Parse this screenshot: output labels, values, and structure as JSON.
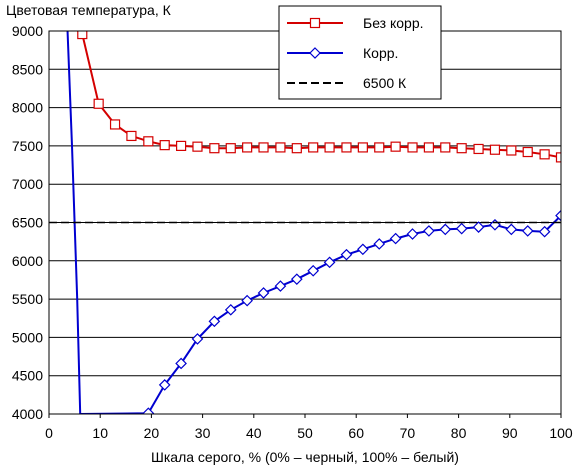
{
  "chart_data": {
    "type": "line",
    "title": "",
    "ylabel": "Цветовая температура, К",
    "xlabel": "Шкала серого, % (0% – черный, 100% – белый)",
    "xlim": [
      0,
      100
    ],
    "ylim": [
      4000,
      9000
    ],
    "xticks": [
      "0",
      "10",
      "20",
      "30",
      "40",
      "50",
      "60",
      "70",
      "80",
      "90",
      "100"
    ],
    "yticks": [
      "4000",
      "4500",
      "5000",
      "5500",
      "6000",
      "6500",
      "7000",
      "7500",
      "8000",
      "8500",
      "9000"
    ],
    "grid": true,
    "legend_position": "top-right",
    "series": [
      {
        "name": "Без корр.",
        "color": "#d40000",
        "marker": "square",
        "line": "solid",
        "x": [
          6.5,
          9.7,
          12.9,
          16.1,
          19.4,
          22.6,
          25.8,
          29.0,
          32.3,
          35.5,
          38.7,
          41.9,
          45.2,
          48.4,
          51.6,
          54.8,
          58.1,
          61.3,
          64.5,
          67.7,
          71.0,
          74.2,
          77.4,
          80.6,
          83.9,
          87.1,
          90.3,
          93.5,
          96.8,
          100.0
        ],
        "y": [
          8960,
          8050,
          7780,
          7630,
          7560,
          7510,
          7500,
          7490,
          7470,
          7470,
          7480,
          7480,
          7480,
          7470,
          7480,
          7480,
          7480,
          7480,
          7480,
          7490,
          7480,
          7480,
          7480,
          7470,
          7460,
          7450,
          7440,
          7420,
          7390,
          7350
        ]
      },
      {
        "name": "Корр.",
        "color": "#0000d0",
        "marker": "diamond",
        "line": "solid",
        "x": [
          3.6,
          4.5,
          5.5,
          6.1,
          19.4,
          22.6,
          25.8,
          29.0,
          32.3,
          35.5,
          38.7,
          41.9,
          45.2,
          48.4,
          51.6,
          54.8,
          58.1,
          61.3,
          64.5,
          67.7,
          71.0,
          74.2,
          77.4,
          80.6,
          83.9,
          87.1,
          90.3,
          93.5,
          96.8,
          100.0
        ],
        "y": [
          9050,
          7500,
          5500,
          4000,
          4010,
          4380,
          4660,
          4980,
          5210,
          5360,
          5480,
          5580,
          5670,
          5760,
          5870,
          5980,
          6080,
          6150,
          6220,
          6290,
          6350,
          6390,
          6410,
          6420,
          6440,
          6470,
          6410,
          6390,
          6380,
          6590
        ],
        "marker_from_index": 4
      },
      {
        "name": "6500 К",
        "color": "#000000",
        "marker": "none",
        "line": "dashed",
        "x": [
          0,
          100
        ],
        "y": [
          6500,
          6500
        ]
      }
    ]
  }
}
